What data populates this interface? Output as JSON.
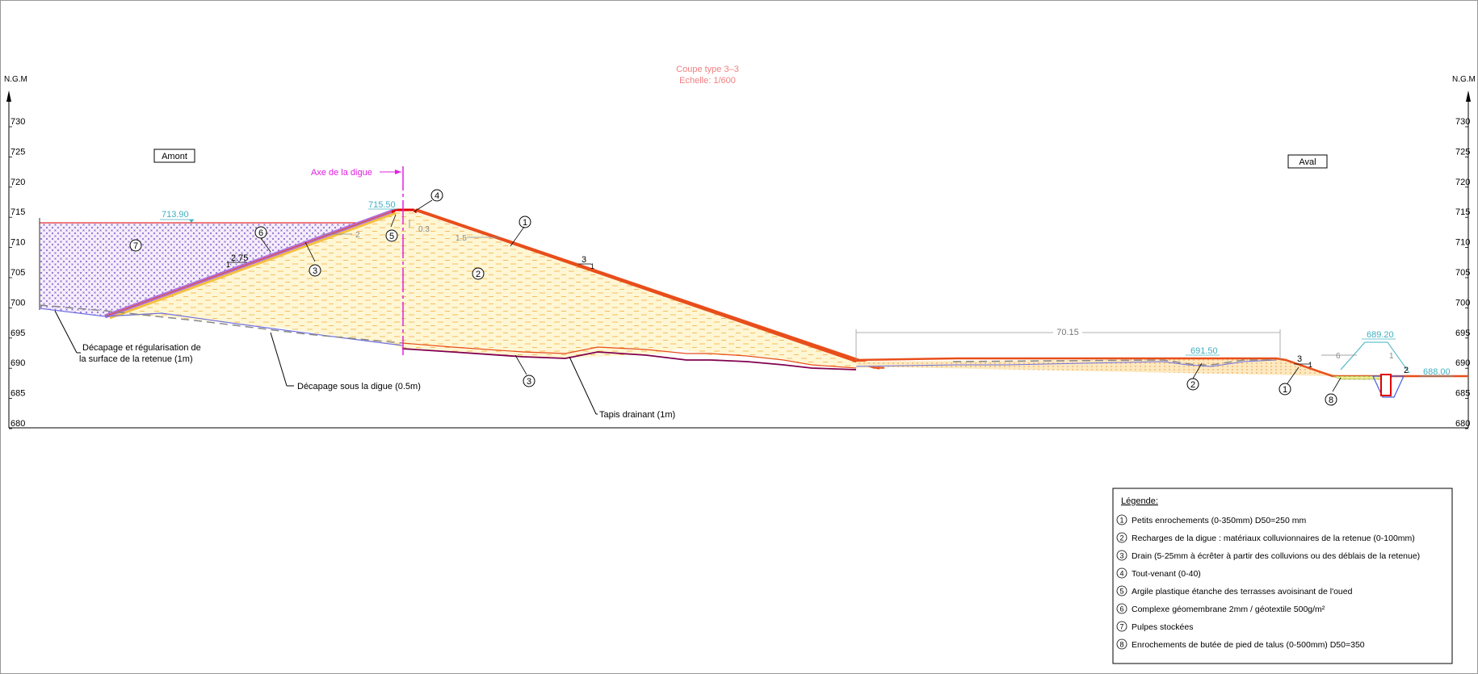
{
  "title": {
    "line1": "Coupe type 3–3",
    "line2": "Echelle: 1/600",
    "color": "#f08080"
  },
  "axis": {
    "label_left": "N.G.M",
    "label_right": "N.G.M",
    "ticks": [
      730,
      725,
      720,
      715,
      710,
      705,
      700,
      695,
      690,
      685,
      680
    ]
  },
  "labels": {
    "amont": "Amont",
    "aval": "Aval",
    "axe": "Axe de la digue",
    "decapage_retenue_1": "Décapage et régularisation de",
    "decapage_retenue_2": "la surface de la retenue (1m)",
    "decapage_digue": "Décapage sous la digue (0.5m)",
    "tapis": "Tapis drainant (1m)"
  },
  "elevations": {
    "e1": "713.90",
    "e2": "715.50",
    "e3": "691.50",
    "e4": "689.20",
    "e5": "688.00"
  },
  "dimensions": {
    "d1": "70.15",
    "d2": "0.3",
    "d3": "1.5",
    "d4": "2",
    "d5": "2.75",
    "d6": "3",
    "d7": "3",
    "d8": "6",
    "d9": "1",
    "d10": "2",
    "d11": "1",
    "d12": "1",
    "d13": "1"
  },
  "markers": [
    "1",
    "2",
    "3",
    "4",
    "5",
    "6",
    "7",
    "8",
    "3",
    "2",
    "1"
  ],
  "legend": {
    "title": "Légende:",
    "items": [
      {
        "num": "1",
        "text": "Petits enrochements (0-350mm) D50=250 mm"
      },
      {
        "num": "2",
        "text": "Recharges de la digue : matériaux colluvionnaires de la retenue  (0-100mm)"
      },
      {
        "num": "3",
        "text": "Drain (5-25mm à écrêter à partir des colluvions ou des déblais de la retenue)"
      },
      {
        "num": "4",
        "text": "Tout-venant (0-40)"
      },
      {
        "num": "5",
        "text": "Argile plastique étanche des terrasses avoisinant de l'oued"
      },
      {
        "num": "6",
        "text": "Complexe géomembrane 2mm / géotextile 500g/m²"
      },
      {
        "num": "7",
        "text": "Pulpes stockées"
      },
      {
        "num": "8",
        "text": "Enrochements de butée de pied de talus (0-500mm) D50=350"
      }
    ]
  },
  "colors": {
    "rockfill": "#e84e1b",
    "fill_body": "#fff6d0",
    "fill_pattern": "#f5b84a",
    "pulp": "#7a55c8",
    "axis_line": "#e020e0",
    "elevation": "#40b0c0",
    "membrane": "#b070e0",
    "ground": "#7070e0",
    "drain_under": "#800050"
  }
}
